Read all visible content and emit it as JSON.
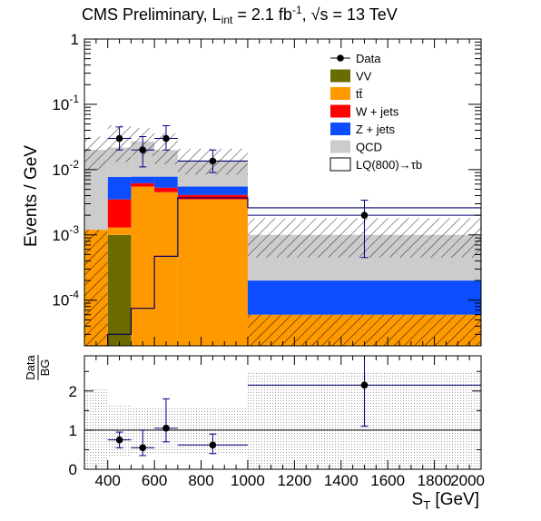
{
  "header": {
    "title_main": "CMS Preliminary, L",
    "title_sub": "int",
    "title_mid": " = 2.1 fb",
    "title_sup": "-1",
    "title_sep": ", ",
    "title_root": "√s",
    "title_end": " = 13 TeV"
  },
  "colors": {
    "VV": "#6b6b00",
    "ttbar": "#ff9900",
    "wjets": "#ff0000",
    "zjets": "#0b4dff",
    "qcd": "#cccccc",
    "signal_line": "#000066",
    "data": "#000000",
    "errbar": "#000080"
  },
  "chart_data": [
    {
      "type": "bar",
      "stacked": true,
      "log_y": true,
      "ylabel": "Events / GeV",
      "xlim": [
        300,
        2000
      ],
      "ylim": [
        2e-05,
        1
      ],
      "y_tick_labels": [
        "1",
        "10",
        "10",
        "10",
        "10"
      ],
      "y_tick_exponents": [
        "",
        "-1",
        "-2",
        "-3",
        "-4"
      ],
      "bin_edges": [
        300,
        400,
        500,
        600,
        700,
        1000,
        2000
      ],
      "series": [
        {
          "name": "VV",
          "values": [
            0,
            0.001,
            0,
            0,
            0,
            0
          ]
        },
        {
          "name": "tt̄",
          "values": [
            0.0012,
            0.0003,
            0.0055,
            0.0045,
            0.0035,
            6e-05
          ]
        },
        {
          "name": "W + jets",
          "values": [
            0,
            0.0022,
            0.0007,
            0.0008,
            0.0006,
            0
          ]
        },
        {
          "name": "Z + jets",
          "values": [
            0,
            0.0042,
            0.0016,
            0.0025,
            0.0014,
            0.00014
          ]
        },
        {
          "name": "QCD",
          "values": [
            0.0188,
            0.0141,
            0.0192,
            0.0122,
            0.0085,
            0.0008
          ]
        }
      ],
      "signal": {
        "name": "LQ(800)→τb",
        "values": [
          2e-05,
          3e-05,
          7.5e-05,
          0.00047,
          0.0037,
          0.0026
        ]
      },
      "data": {
        "name": "Data",
        "x": [
          450,
          550,
          650,
          850,
          1500
        ],
        "y": [
          0.03,
          0.02,
          0.03,
          0.0135,
          0.002
        ],
        "y_lo": [
          0.02,
          0.011,
          0.02,
          0.009,
          0.00045
        ],
        "y_hi": [
          0.045,
          0.032,
          0.047,
          0.02,
          0.0034
        ],
        "x_lo": [
          400,
          500,
          600,
          700,
          1000
        ],
        "x_hi": [
          500,
          600,
          700,
          1000,
          2000
        ]
      },
      "legend_position": "top-right"
    },
    {
      "type": "scatter",
      "ylabel_num": "Data",
      "ylabel_den": "BG",
      "xlabel_main": "S",
      "xlabel_sub": "T",
      "xlabel_unit": " [GeV]",
      "xlim": [
        300,
        2000
      ],
      "ylim": [
        0,
        2.9
      ],
      "x_ticks": [
        400,
        600,
        800,
        1000,
        1200,
        1400,
        1600,
        1800,
        2000
      ],
      "x_tick_labels": [
        "400",
        "600",
        "800",
        "1000",
        "1200",
        "1400",
        "1600",
        "1800",
        "2000"
      ],
      "y_ticks": [
        0,
        1,
        2
      ],
      "y_tick_labels": [
        "0",
        "1",
        "2"
      ],
      "reference_line": 1,
      "points": {
        "x": [
          450,
          550,
          650,
          850,
          1500
        ],
        "y": [
          0.75,
          0.55,
          1.05,
          0.62,
          2.15
        ],
        "y_lo": [
          0.55,
          0.35,
          0.7,
          0.4,
          1.1
        ],
        "y_hi": [
          0.95,
          1.0,
          1.8,
          0.9,
          3.0
        ],
        "x_lo": [
          400,
          500,
          600,
          700,
          1000
        ],
        "x_hi": [
          500,
          600,
          700,
          1000,
          2000
        ]
      },
      "band_halfwidth": [
        1.05,
        0.65,
        0.6,
        0.6,
        0.6,
        1.5
      ]
    }
  ]
}
